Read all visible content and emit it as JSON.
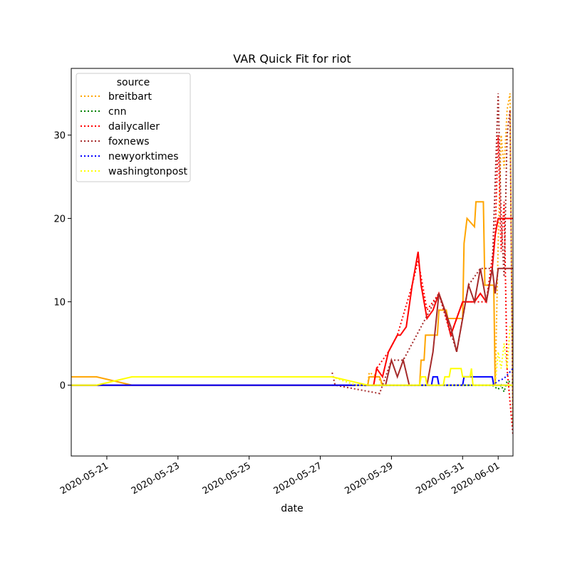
{
  "chart_data": {
    "type": "line",
    "title": "VAR Quick Fit for riot",
    "xlabel": "date",
    "ylabel": "",
    "x_type": "date",
    "xlim": [
      "2020-05-20T00:00",
      "2020-06-01T10:00"
    ],
    "ylim": [
      -8.5,
      38
    ],
    "x_ticks": [
      "2020-05-21",
      "2020-05-23",
      "2020-05-25",
      "2020-05-27",
      "2020-05-29",
      "2020-05-31",
      "2020-06-01"
    ],
    "y_ticks": [
      0,
      10,
      20,
      30
    ],
    "grid": false,
    "legend": {
      "title": "source",
      "placement": "top-left"
    },
    "series": [
      {
        "name": "breitbart",
        "color": "#ffa500",
        "actual": [
          [
            "2020-05-20T00:00",
            1
          ],
          [
            "2020-05-20T17:00",
            1
          ],
          [
            "2020-05-21T17:00",
            0
          ],
          [
            "2020-05-28T08:00",
            0
          ],
          [
            "2020-05-28T09:00",
            1
          ],
          [
            "2020-05-28T16:00",
            1
          ],
          [
            "2020-05-28T18:00",
            0
          ],
          [
            "2020-05-29T19:00",
            0
          ],
          [
            "2020-05-29T20:00",
            3
          ],
          [
            "2020-05-29T22:00",
            3
          ],
          [
            "2020-05-29T23:00",
            6
          ],
          [
            "2020-05-30T07:00",
            6
          ],
          [
            "2020-05-30T08:00",
            9
          ],
          [
            "2020-05-30T13:00",
            9
          ],
          [
            "2020-05-30T14:00",
            8
          ],
          [
            "2020-05-31T00:00",
            8
          ],
          [
            "2020-05-31T01:00",
            17
          ],
          [
            "2020-05-31T03:00",
            20
          ],
          [
            "2020-05-31T08:00",
            19
          ],
          [
            "2020-05-31T09:00",
            22
          ],
          [
            "2020-05-31T14:00",
            22
          ],
          [
            "2020-05-31T15:00",
            12
          ],
          [
            "2020-05-31T21:00",
            12
          ],
          [
            "2020-05-31T22:00",
            0
          ],
          [
            "2020-06-01T10:00",
            0
          ]
        ],
        "forecast": [
          [
            "2020-05-27T08:00",
            0
          ],
          [
            "2020-05-28T08:00",
            0
          ],
          [
            "2020-05-28T09:00",
            1.5
          ],
          [
            "2020-05-28T15:00",
            1
          ],
          [
            "2020-05-28T18:00",
            0
          ],
          [
            "2020-05-31T22:00",
            0
          ],
          [
            "2020-06-01T00:00",
            17
          ],
          [
            "2020-06-01T02:00",
            30
          ],
          [
            "2020-06-01T04:00",
            26
          ],
          [
            "2020-06-01T06:00",
            33
          ],
          [
            "2020-06-01T08:00",
            35
          ],
          [
            "2020-06-01T10:00",
            -5
          ]
        ]
      },
      {
        "name": "cnn",
        "color": "#008000",
        "actual": [
          [
            "2020-05-20T00:00",
            0
          ],
          [
            "2020-06-01T00:00",
            0
          ]
        ],
        "forecast": [
          [
            "2020-05-27T08:00",
            0
          ],
          [
            "2020-05-31T20:00",
            0
          ],
          [
            "2020-06-01T00:00",
            -0.5
          ],
          [
            "2020-06-01T02:00",
            0
          ],
          [
            "2020-06-01T04:00",
            -0.8
          ],
          [
            "2020-06-01T06:00",
            0.5
          ],
          [
            "2020-06-01T10:00",
            0.3
          ]
        ]
      },
      {
        "name": "dailycaller",
        "color": "#ff0000",
        "actual": [
          [
            "2020-05-20T00:00",
            0
          ],
          [
            "2020-05-28T12:00",
            0
          ],
          [
            "2020-05-28T14:00",
            2
          ],
          [
            "2020-05-28T18:00",
            1
          ],
          [
            "2020-05-28T22:00",
            4
          ],
          [
            "2020-05-29T04:00",
            6
          ],
          [
            "2020-05-29T06:00",
            6
          ],
          [
            "2020-05-29T10:00",
            7
          ],
          [
            "2020-05-29T14:00",
            12
          ],
          [
            "2020-05-29T16:00",
            14
          ],
          [
            "2020-05-29T18:00",
            16
          ],
          [
            "2020-05-29T20:00",
            12
          ],
          [
            "2020-05-30T00:00",
            8
          ],
          [
            "2020-05-30T04:00",
            9
          ],
          [
            "2020-05-30T08:00",
            11
          ],
          [
            "2020-05-30T12:00",
            9
          ],
          [
            "2020-05-30T16:00",
            6
          ],
          [
            "2020-05-30T20:00",
            8
          ],
          [
            "2020-05-31T00:00",
            10
          ],
          [
            "2020-05-31T04:00",
            10
          ],
          [
            "2020-05-31T08:00",
            10
          ],
          [
            "2020-05-31T12:00",
            11
          ],
          [
            "2020-05-31T16:00",
            10
          ],
          [
            "2020-05-31T18:00",
            12
          ],
          [
            "2020-05-31T20:00",
            14
          ],
          [
            "2020-05-31T22:00",
            18
          ],
          [
            "2020-06-01T00:00",
            20
          ],
          [
            "2020-06-01T10:00",
            20
          ]
        ],
        "forecast": [
          [
            "2020-05-28T12:00",
            0
          ],
          [
            "2020-05-28T14:00",
            2
          ],
          [
            "2020-05-28T22:00",
            4
          ],
          [
            "2020-05-29T04:00",
            6
          ],
          [
            "2020-05-29T14:00",
            12
          ],
          [
            "2020-05-29T18:00",
            15
          ],
          [
            "2020-05-30T00:00",
            9
          ],
          [
            "2020-05-30T08:00",
            11
          ],
          [
            "2020-05-30T16:00",
            6
          ],
          [
            "2020-05-31T00:00",
            10
          ],
          [
            "2020-05-31T16:00",
            10
          ],
          [
            "2020-05-31T22:00",
            18
          ],
          [
            "2020-06-01T00:00",
            30
          ],
          [
            "2020-06-01T02:00",
            16
          ],
          [
            "2020-06-01T04:00",
            22
          ],
          [
            "2020-06-01T06:00",
            2
          ],
          [
            "2020-06-01T08:00",
            -2
          ],
          [
            "2020-06-01T10:00",
            -6
          ]
        ]
      },
      {
        "name": "foxnews",
        "color": "#a52a2a",
        "actual": [
          [
            "2020-05-20T00:00",
            0
          ],
          [
            "2020-05-28T20:00",
            0
          ],
          [
            "2020-05-29T00:00",
            3
          ],
          [
            "2020-05-29T04:00",
            1
          ],
          [
            "2020-05-29T08:00",
            3
          ],
          [
            "2020-05-29T12:00",
            0
          ],
          [
            "2020-05-30T00:00",
            0
          ],
          [
            "2020-05-30T04:00",
            4
          ],
          [
            "2020-05-30T08:00",
            11
          ],
          [
            "2020-05-30T12:00",
            9
          ],
          [
            "2020-05-30T16:00",
            7
          ],
          [
            "2020-05-30T20:00",
            4
          ],
          [
            "2020-05-31T00:00",
            8
          ],
          [
            "2020-05-31T04:00",
            12
          ],
          [
            "2020-05-31T08:00",
            10
          ],
          [
            "2020-05-31T12:00",
            14
          ],
          [
            "2020-05-31T16:00",
            10
          ],
          [
            "2020-05-31T20:00",
            14
          ],
          [
            "2020-05-31T22:00",
            11
          ],
          [
            "2020-06-01T00:00",
            14
          ],
          [
            "2020-06-01T10:00",
            14
          ]
        ],
        "forecast": [
          [
            "2020-05-27T08:00",
            1.5
          ],
          [
            "2020-05-27T10:00",
            0
          ],
          [
            "2020-05-28T16:00",
            -1
          ],
          [
            "2020-05-29T00:00",
            3
          ],
          [
            "2020-05-29T08:00",
            3
          ],
          [
            "2020-05-30T08:00",
            11
          ],
          [
            "2020-05-30T20:00",
            4
          ],
          [
            "2020-05-31T04:00",
            12
          ],
          [
            "2020-05-31T12:00",
            14
          ],
          [
            "2020-05-31T20:00",
            14
          ],
          [
            "2020-06-01T00:00",
            35
          ],
          [
            "2020-06-01T02:00",
            20
          ],
          [
            "2020-06-01T04:00",
            13
          ],
          [
            "2020-06-01T06:00",
            30
          ],
          [
            "2020-06-01T08:00",
            33
          ],
          [
            "2020-06-01T10:00",
            -6
          ]
        ]
      },
      {
        "name": "newyorktimes",
        "color": "#0000ff",
        "actual": [
          [
            "2020-05-20T00:00",
            0
          ],
          [
            "2020-05-30T03:00",
            0
          ],
          [
            "2020-05-30T04:00",
            1
          ],
          [
            "2020-05-30T07:00",
            1
          ],
          [
            "2020-05-30T08:00",
            0
          ],
          [
            "2020-05-31T00:00",
            0
          ],
          [
            "2020-05-31T01:00",
            1
          ],
          [
            "2020-05-31T20:00",
            1
          ],
          [
            "2020-05-31T21:00",
            0
          ],
          [
            "2020-06-01T10:00",
            0
          ]
        ],
        "forecast": [
          [
            "2020-05-27T08:00",
            0
          ],
          [
            "2020-05-31T20:00",
            0
          ],
          [
            "2020-06-01T00:00",
            0.5
          ],
          [
            "2020-06-01T04:00",
            0.8
          ],
          [
            "2020-06-01T06:00",
            1.2
          ],
          [
            "2020-06-01T10:00",
            2
          ]
        ]
      },
      {
        "name": "washingtonpost",
        "color": "#ffff00",
        "actual": [
          [
            "2020-05-20T00:00",
            0
          ],
          [
            "2020-05-20T17:00",
            0
          ],
          [
            "2020-05-21T17:00",
            1
          ],
          [
            "2020-05-27T08:00",
            1
          ],
          [
            "2020-05-28T08:00",
            0
          ],
          [
            "2020-05-29T19:00",
            0
          ],
          [
            "2020-05-29T20:00",
            1
          ],
          [
            "2020-05-29T23:00",
            1
          ],
          [
            "2020-05-30T00:00",
            0
          ],
          [
            "2020-05-30T11:00",
            0
          ],
          [
            "2020-05-30T12:00",
            1
          ],
          [
            "2020-05-30T15:00",
            1
          ],
          [
            "2020-05-30T16:00",
            2
          ],
          [
            "2020-05-30T23:00",
            2
          ],
          [
            "2020-05-31T00:00",
            1
          ],
          [
            "2020-05-31T05:00",
            1
          ],
          [
            "2020-05-31T06:00",
            2
          ],
          [
            "2020-05-31T07:00",
            0
          ],
          [
            "2020-06-01T10:00",
            0
          ]
        ],
        "forecast": [
          [
            "2020-05-27T08:00",
            1
          ],
          [
            "2020-05-28T00:00",
            0
          ],
          [
            "2020-05-31T22:00",
            0
          ],
          [
            "2020-06-01T00:00",
            4
          ],
          [
            "2020-06-01T02:00",
            2
          ],
          [
            "2020-06-01T04:00",
            5
          ],
          [
            "2020-06-01T06:00",
            2
          ],
          [
            "2020-06-01T08:00",
            7
          ],
          [
            "2020-06-01T10:00",
            7
          ]
        ]
      }
    ]
  }
}
